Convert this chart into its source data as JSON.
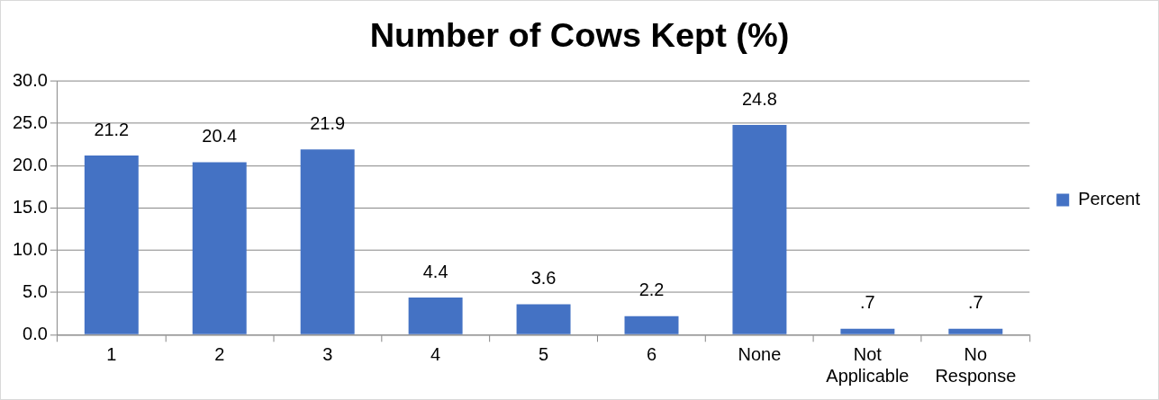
{
  "chart_data": {
    "type": "bar",
    "title": "Number of Cows Kept (%)",
    "categories": [
      "1",
      "2",
      "3",
      "4",
      "5",
      "6",
      "None",
      "Not Applicable",
      "No Response"
    ],
    "series": [
      {
        "name": "Percent",
        "color": "#4472c4",
        "values": [
          21.2,
          20.4,
          21.9,
          4.4,
          3.6,
          2.2,
          24.8,
          0.7,
          0.7
        ],
        "value_labels": [
          "21.2",
          "20.4",
          "21.9",
          "4.4",
          "3.6",
          "2.2",
          "24.8",
          ".7",
          ".7"
        ]
      }
    ],
    "ylim": [
      0,
      30
    ],
    "yticks": [
      {
        "value": 0,
        "label": "0.0"
      },
      {
        "value": 5,
        "label": "5.0"
      },
      {
        "value": 10,
        "label": "10.0"
      },
      {
        "value": 15,
        "label": "15.0"
      },
      {
        "value": 20,
        "label": "20.0"
      },
      {
        "value": 25,
        "label": "25.0"
      },
      {
        "value": 30,
        "label": "30.0"
      }
    ],
    "grid": "y",
    "legend": "right"
  }
}
